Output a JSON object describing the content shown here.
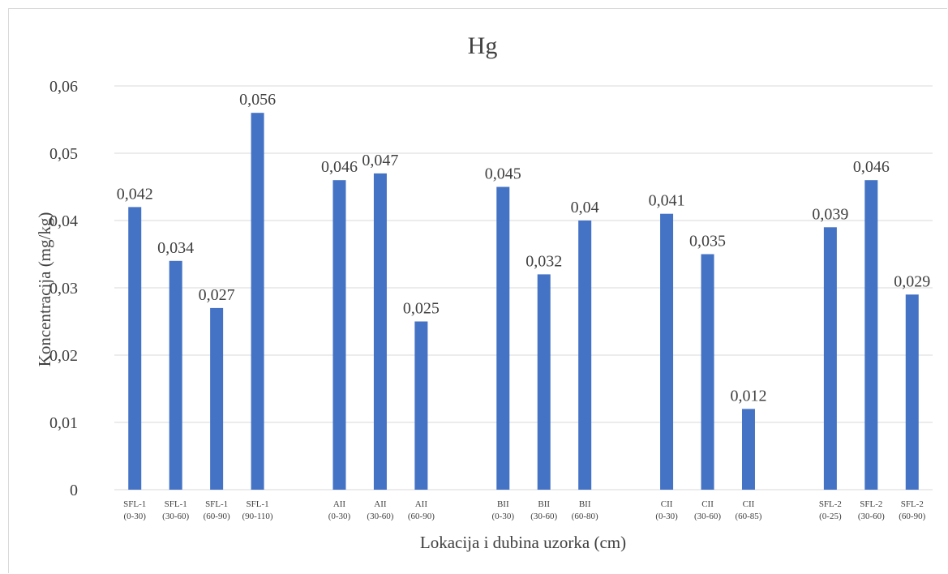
{
  "chart_data": {
    "type": "bar",
    "title": "Hg",
    "xlabel": "Lokacija i dubina uzorka (cm)",
    "ylabel": "Koncentracija (mg/kg)",
    "ylim": [
      0,
      0.06
    ],
    "yticks": [
      "0",
      "0,01",
      "0,02",
      "0,03",
      "0,04",
      "0,05",
      "0,06"
    ],
    "grid": true,
    "legend": "none",
    "bar_color": "#4472c4",
    "categories": [
      {
        "line1": "SFL-1",
        "line2": "(0-30)"
      },
      {
        "line1": "SFL-1",
        "line2": "(30-60)"
      },
      {
        "line1": "SFL-1",
        "line2": "(60-90)"
      },
      {
        "line1": "SFL-1",
        "line2": "(90-110)"
      },
      {
        "line1": "",
        "line2": ""
      },
      {
        "line1": "AII",
        "line2": "(0-30)"
      },
      {
        "line1": "AII",
        "line2": "(30-60)"
      },
      {
        "line1": "AII",
        "line2": "(60-90)"
      },
      {
        "line1": "",
        "line2": ""
      },
      {
        "line1": "BII",
        "line2": "(0-30)"
      },
      {
        "line1": "BII",
        "line2": "(30-60)"
      },
      {
        "line1": "BII",
        "line2": "(60-80)"
      },
      {
        "line1": "",
        "line2": ""
      },
      {
        "line1": "CII",
        "line2": "(0-30)"
      },
      {
        "line1": "CII",
        "line2": "(30-60)"
      },
      {
        "line1": "CII",
        "line2": "(60-85)"
      },
      {
        "line1": "",
        "line2": ""
      },
      {
        "line1": "SFL-2",
        "line2": "(0-25)"
      },
      {
        "line1": "SFL-2",
        "line2": "(30-60)"
      },
      {
        "line1": "SFL-2",
        "line2": "(60-90)"
      }
    ],
    "values": [
      0.042,
      0.034,
      0.027,
      0.056,
      null,
      0.046,
      0.047,
      0.025,
      null,
      0.045,
      0.032,
      0.04,
      null,
      0.041,
      0.035,
      0.012,
      null,
      0.039,
      0.046,
      0.029
    ],
    "data_labels": [
      "0,042",
      "0,034",
      "0,027",
      "0,056",
      "",
      "0,046",
      "0,047",
      "0,025",
      "",
      "0,045",
      "0,032",
      "0,04",
      "",
      "0,041",
      "0,035",
      "0,012",
      "",
      "0,039",
      "0,046",
      "0,029"
    ]
  }
}
